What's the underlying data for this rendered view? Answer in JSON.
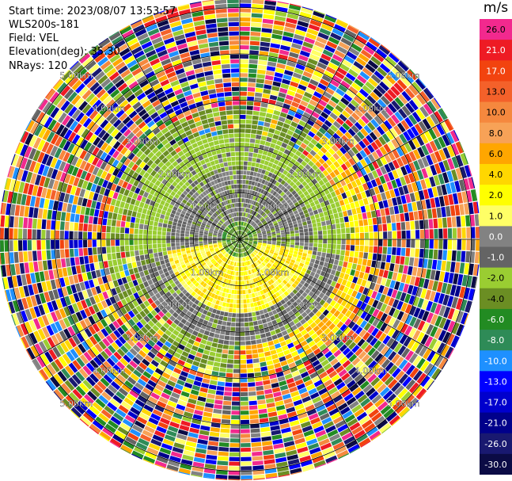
{
  "header": {
    "start_time": "Start time: 2023/08/07 13:53:57",
    "instrument": "WLS200s-181",
    "field": "Field: VEL",
    "elevation": "Elevation(deg): 35.30",
    "nrays": "NRays: 120"
  },
  "colorbar": {
    "unit": "m/s",
    "bins": [
      {
        "label": "26.0",
        "color": "#f2298e"
      },
      {
        "label": "21.0",
        "color": "#ee1b24"
      },
      {
        "label": "17.0",
        "color": "#f2430f"
      },
      {
        "label": "13.0",
        "color": "#f4612a"
      },
      {
        "label": "10.0",
        "color": "#f5883e"
      },
      {
        "label": "8.0",
        "color": "#f7a257"
      },
      {
        "label": "6.0",
        "color": "#ffa600"
      },
      {
        "label": "4.0",
        "color": "#ffd700"
      },
      {
        "label": "2.0",
        "color": "#ffff00"
      },
      {
        "label": "1.0",
        "color": "#ffff66"
      },
      {
        "label": "0.0",
        "color": "#828282"
      },
      {
        "label": "-1.0",
        "color": "#646464"
      },
      {
        "label": "-2.0",
        "color": "#9acd32"
      },
      {
        "label": "-4.0",
        "color": "#6b8e23"
      },
      {
        "label": "-6.0",
        "color": "#228b22"
      },
      {
        "label": "-8.0",
        "color": "#2e8b57"
      },
      {
        "label": "-10.0",
        "color": "#1e90ff"
      },
      {
        "label": "-13.0",
        "color": "#0000ff"
      },
      {
        "label": "-17.0",
        "color": "#0000cd"
      },
      {
        "label": "-21.0",
        "color": "#00008b"
      },
      {
        "label": "-26.0",
        "color": "#191970"
      },
      {
        "label": "-30.0",
        "color": "#0b0b45"
      }
    ]
  },
  "chart_data": {
    "type": "heatmap",
    "projection": "polar (PPI)",
    "field": "VEL",
    "units": "m/s",
    "nrays": 120,
    "range_rings_km": [
      1,
      2,
      3,
      4,
      5
    ],
    "ring_labels": [
      "1.00km",
      "2.00km",
      "3.00km",
      "4.00km",
      "5.00km"
    ],
    "spokes_deg": [
      0,
      30,
      60,
      90,
      120,
      150,
      180,
      210,
      240,
      270,
      300,
      330
    ],
    "pattern_summary": [
      {
        "range_km": [
          0,
          0.5
        ],
        "bearing": "all",
        "values": "green (-2 to -6)"
      },
      {
        "range_km": [
          0.5,
          1.6
        ],
        "bearing": "north half",
        "values": "grey (0 to -1) with green"
      },
      {
        "range_km": [
          0.3,
          1.6
        ],
        "bearing": "south half",
        "values": "yellow (1 to 4)"
      },
      {
        "range_km": [
          1.6,
          2.3
        ],
        "bearing": "north",
        "values": "green (-2)"
      },
      {
        "range_km": [
          1.6,
          2.3
        ],
        "bearing": "south",
        "values": "grey (0 to -1)"
      },
      {
        "range_km": [
          2.3,
          2.9
        ],
        "bearing": "east/southeast",
        "values": "yellow (2 to 6)"
      },
      {
        "range_km": [
          2.3,
          2.9
        ],
        "bearing": "west/south",
        "values": "green (-2 to -4)"
      },
      {
        "range_km": [
          3.0,
          5.5
        ],
        "bearing": "all",
        "values": "noise: full colour range -30 to 26"
      }
    ]
  }
}
